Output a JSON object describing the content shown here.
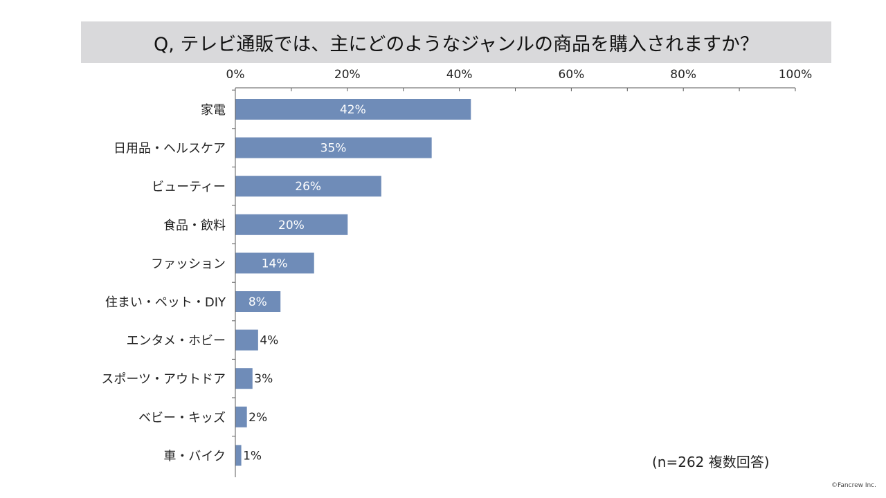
{
  "title": "Q, テレビ通販では、主にどのようなジャンルの商品を購入されますか？",
  "note": "(n=262 複数回答)",
  "copyright": "©Fancrew Inc.",
  "colors": {
    "bar": "#6f8cb8",
    "title_background": "#d9d9db",
    "axis": "#595959",
    "inside_label": "#ffffff",
    "outside_label": "#222222"
  },
  "chart_data": {
    "type": "bar",
    "orientation": "horizontal",
    "title": "Q, テレビ通販では、主にどのようなジャンルの商品を購入されますか？",
    "categories": [
      "家電",
      "日用品・ヘルスケア",
      "ビューティー",
      "食品・飲料",
      "ファッション",
      "住まい・ペット・DIY",
      "エンタメ・ホビー",
      "スポーツ・アウトドア",
      "ベビー・キッズ",
      "車・バイク"
    ],
    "values": [
      42,
      35,
      26,
      20,
      14,
      8,
      4,
      3,
      2,
      1
    ],
    "value_labels": [
      "42%",
      "35%",
      "26%",
      "20%",
      "14%",
      "8%",
      "4%",
      "3%",
      "2%",
      "1%"
    ],
    "xlim": [
      0,
      100
    ],
    "x_ticks": [
      0,
      20,
      40,
      60,
      80,
      100
    ],
    "x_tick_labels": [
      "0%",
      "20%",
      "40%",
      "60%",
      "80%",
      "100%"
    ],
    "axis_position": "top",
    "grid": false,
    "legend": "none"
  }
}
